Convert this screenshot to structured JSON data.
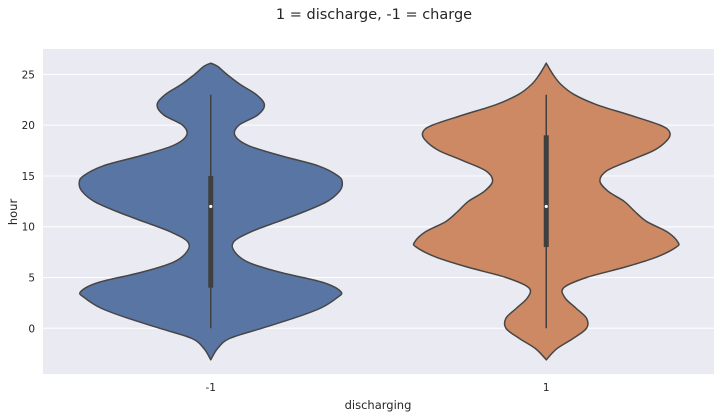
{
  "chart_data": {
    "type": "violin",
    "title": "1 = discharge, -1 = charge",
    "xlabel": "discharging",
    "ylabel": "hour",
    "ylim": [
      -4.5,
      27.5
    ],
    "yticks": [
      0,
      5,
      10,
      15,
      20,
      25
    ],
    "categories": [
      "-1",
      "1"
    ],
    "grid": true,
    "colors": {
      "background": "#eaeaf2",
      "grid": "#ffffff",
      "edge": "#464646",
      "series": [
        "#5975a4",
        "#cc8963"
      ]
    },
    "violins": [
      {
        "category": "-1",
        "min": 0,
        "q1": 4,
        "median": 12,
        "q3": 15,
        "max": 23,
        "kde_extent": [
          -3.1,
          26.1
        ],
        "density_profile": [
          [
            -3.1,
            0.0
          ],
          [
            -2.0,
            0.05
          ],
          [
            -1.0,
            0.14
          ],
          [
            0.0,
            0.38
          ],
          [
            1.0,
            0.62
          ],
          [
            2.0,
            0.82
          ],
          [
            3.0,
            0.94
          ],
          [
            3.6,
            0.97
          ],
          [
            4.5,
            0.84
          ],
          [
            5.5,
            0.52
          ],
          [
            6.5,
            0.28
          ],
          [
            7.5,
            0.18
          ],
          [
            8.5,
            0.17
          ],
          [
            9.5,
            0.3
          ],
          [
            10.5,
            0.5
          ],
          [
            11.5,
            0.7
          ],
          [
            12.5,
            0.87
          ],
          [
            13.5,
            0.96
          ],
          [
            14.3,
            0.98
          ],
          [
            15.0,
            0.95
          ],
          [
            16.0,
            0.8
          ],
          [
            17.0,
            0.52
          ],
          [
            18.0,
            0.28
          ],
          [
            19.0,
            0.18
          ],
          [
            20.0,
            0.21
          ],
          [
            21.0,
            0.35
          ],
          [
            22.0,
            0.4
          ],
          [
            23.0,
            0.34
          ],
          [
            24.0,
            0.22
          ],
          [
            25.0,
            0.12
          ],
          [
            25.8,
            0.05
          ],
          [
            26.1,
            0.0
          ]
        ]
      },
      {
        "category": "1",
        "min": 0,
        "q1": 8,
        "median": 12,
        "q3": 19,
        "max": 23,
        "kde_extent": [
          -3.1,
          26.1
        ],
        "density_profile": [
          [
            -3.1,
            0.0
          ],
          [
            -2.0,
            0.08
          ],
          [
            -1.0,
            0.2
          ],
          [
            0.0,
            0.3
          ],
          [
            1.0,
            0.3
          ],
          [
            2.0,
            0.22
          ],
          [
            3.0,
            0.14
          ],
          [
            4.0,
            0.13
          ],
          [
            5.0,
            0.3
          ],
          [
            6.0,
            0.58
          ],
          [
            7.0,
            0.82
          ],
          [
            8.0,
            0.97
          ],
          [
            8.5,
            0.98
          ],
          [
            9.5,
            0.9
          ],
          [
            10.5,
            0.75
          ],
          [
            11.5,
            0.66
          ],
          [
            12.5,
            0.58
          ],
          [
            13.5,
            0.46
          ],
          [
            14.5,
            0.4
          ],
          [
            15.5,
            0.45
          ],
          [
            16.5,
            0.62
          ],
          [
            17.5,
            0.8
          ],
          [
            18.5,
            0.9
          ],
          [
            19.3,
            0.92
          ],
          [
            20.0,
            0.85
          ],
          [
            21.0,
            0.62
          ],
          [
            22.0,
            0.38
          ],
          [
            23.0,
            0.21
          ],
          [
            24.0,
            0.11
          ],
          [
            25.0,
            0.05
          ],
          [
            26.1,
            0.0
          ]
        ]
      }
    ]
  }
}
